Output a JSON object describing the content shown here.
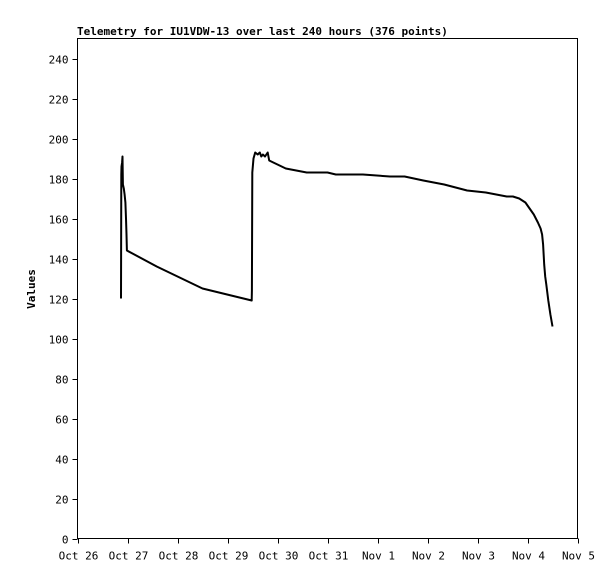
{
  "chart_data": {
    "type": "line",
    "title": "Telemetry for IU1VDW-13 over last 240 hours (376 points)",
    "ylabel": "Values",
    "xlabel": "",
    "ylim": [
      0,
      250
    ],
    "xlim": [
      0,
      240
    ],
    "grid": false,
    "line_color": "#000000",
    "x_ticks": [
      {
        "label": "Oct 26",
        "hour": 0
      },
      {
        "label": "Oct 27",
        "hour": 24
      },
      {
        "label": "Oct 28",
        "hour": 48
      },
      {
        "label": "Oct 29",
        "hour": 72
      },
      {
        "label": "Oct 30",
        "hour": 96
      },
      {
        "label": "Oct 31",
        "hour": 120
      },
      {
        "label": "Nov 1",
        "hour": 144
      },
      {
        "label": "Nov 2",
        "hour": 168
      },
      {
        "label": "Nov 3",
        "hour": 192
      },
      {
        "label": "Nov 4",
        "hour": 216
      },
      {
        "label": "Nov 5",
        "hour": 240
      }
    ],
    "y_ticks": [
      0,
      20,
      40,
      60,
      80,
      100,
      120,
      140,
      160,
      180,
      200,
      220,
      240
    ],
    "series": [
      {
        "points": [
          [
            20.9,
            120
          ],
          [
            21.0,
            182
          ],
          [
            21.1,
            186
          ],
          [
            21.4,
            188
          ],
          [
            21.6,
            191
          ],
          [
            21.8,
            177
          ],
          [
            22.2,
            175
          ],
          [
            22.6,
            172
          ],
          [
            23.0,
            168
          ],
          [
            23.3,
            160
          ],
          [
            23.5,
            152
          ],
          [
            23.7,
            144
          ],
          [
            38.0,
            136
          ],
          [
            60.0,
            125
          ],
          [
            83.6,
            119
          ],
          [
            83.7,
            124
          ],
          [
            83.9,
            183
          ],
          [
            84.5,
            190
          ],
          [
            85.3,
            193
          ],
          [
            86.5,
            192
          ],
          [
            87.5,
            193
          ],
          [
            88.2,
            191
          ],
          [
            89.0,
            192
          ],
          [
            90.0,
            191
          ],
          [
            91.3,
            193
          ],
          [
            92.0,
            189
          ],
          [
            94.0,
            188
          ],
          [
            96.0,
            187
          ],
          [
            100.0,
            185
          ],
          [
            110.0,
            183
          ],
          [
            120.0,
            183
          ],
          [
            124.0,
            182
          ],
          [
            137.0,
            182
          ],
          [
            150.0,
            181
          ],
          [
            157.0,
            181
          ],
          [
            166.0,
            179
          ],
          [
            176.0,
            177
          ],
          [
            187.0,
            174
          ],
          [
            196.0,
            173
          ],
          [
            206.0,
            171
          ],
          [
            209.0,
            171
          ],
          [
            212.0,
            170
          ],
          [
            215.0,
            168
          ],
          [
            217.0,
            165
          ],
          [
            219.0,
            162
          ],
          [
            221.0,
            158
          ],
          [
            222.3,
            155
          ],
          [
            223.0,
            152
          ],
          [
            223.5,
            147
          ],
          [
            224.0,
            137
          ],
          [
            224.5,
            131
          ],
          [
            225.0,
            127
          ],
          [
            226.0,
            119
          ],
          [
            227.0,
            112
          ],
          [
            228.0,
            106
          ]
        ]
      }
    ]
  }
}
